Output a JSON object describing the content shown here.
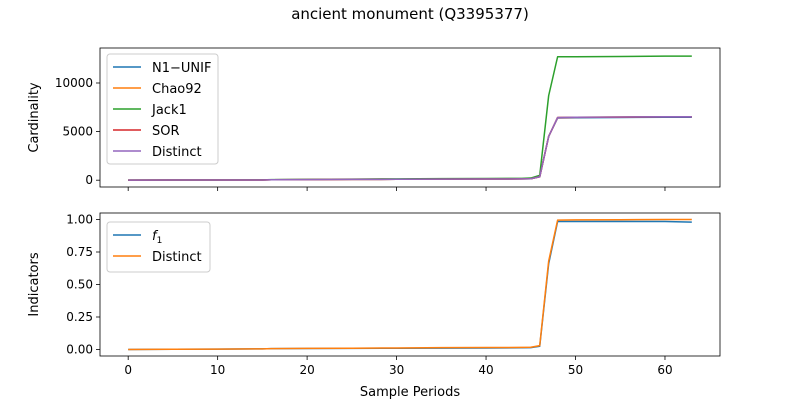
{
  "figure_title": "ancient monument (Q3395377)",
  "colors": {
    "blue": "#1f77b4",
    "orange": "#ff7f0e",
    "green": "#2ca02c",
    "red": "#d62728",
    "purple": "#9467bd"
  },
  "chart_data": [
    {
      "type": "line",
      "title": "",
      "xlabel": "",
      "ylabel": "Cardinality",
      "xlim": [
        -3.15,
        66.15
      ],
      "ylim": [
        -700,
        13600
      ],
      "xticks": [
        0,
        10,
        20,
        30,
        40,
        50,
        60
      ],
      "xtick_labels": [
        "",
        "",
        "",
        "",
        "",
        "",
        ""
      ],
      "yticks": [
        0,
        5000,
        10000
      ],
      "ytick_labels": [
        "0",
        "5000",
        "10000"
      ],
      "grid": false,
      "legend_position": "upper-left",
      "x": [
        0,
        5,
        10,
        15,
        16,
        20,
        25,
        30,
        35,
        40,
        44,
        45,
        46,
        47,
        48,
        50,
        55,
        60,
        63
      ],
      "series": [
        {
          "name": "N1−UNIF",
          "color": "#1f77b4",
          "values": [
            10,
            15,
            20,
            25,
            50,
            60,
            80,
            95,
            110,
            120,
            130,
            150,
            350,
            4500,
            6400,
            6420,
            6450,
            6480,
            6480
          ]
        },
        {
          "name": "Chao92",
          "color": "#ff7f0e",
          "values": [
            10,
            15,
            20,
            25,
            50,
            60,
            80,
            95,
            110,
            120,
            130,
            150,
            350,
            4500,
            6450,
            6470,
            6500,
            6530,
            6530
          ]
        },
        {
          "name": "Jack1",
          "color": "#2ca02c",
          "values": [
            10,
            20,
            25,
            30,
            60,
            80,
            110,
            140,
            160,
            180,
            190,
            220,
            500,
            8700,
            12700,
            12700,
            12730,
            12760,
            12760
          ]
        },
        {
          "name": "SOR",
          "color": "#d62728",
          "values": [
            10,
            15,
            20,
            25,
            50,
            60,
            80,
            95,
            110,
            120,
            130,
            150,
            350,
            4500,
            6440,
            6460,
            6490,
            6520,
            6520
          ]
        },
        {
          "name": "Distinct",
          "color": "#9467bd",
          "values": [
            10,
            15,
            20,
            25,
            50,
            60,
            80,
            95,
            110,
            120,
            130,
            150,
            350,
            4500,
            6450,
            6470,
            6500,
            6530,
            6530
          ]
        }
      ]
    },
    {
      "type": "line",
      "title": "",
      "xlabel": "Sample Periods",
      "ylabel": "Indicators",
      "xlim": [
        -3.15,
        66.15
      ],
      "ylim": [
        -0.05,
        1.05
      ],
      "xticks": [
        0,
        10,
        20,
        30,
        40,
        50,
        60
      ],
      "xtick_labels": [
        "0",
        "10",
        "20",
        "30",
        "40",
        "50",
        "60"
      ],
      "yticks": [
        0.0,
        0.25,
        0.5,
        0.75,
        1.0
      ],
      "ytick_labels": [
        "0.00",
        "0.25",
        "0.50",
        "0.75",
        "1.00"
      ],
      "grid": false,
      "legend_position": "upper-left",
      "x": [
        0,
        5,
        10,
        15,
        16,
        20,
        25,
        30,
        35,
        40,
        44,
        45,
        46,
        47,
        48,
        50,
        55,
        60,
        63
      ],
      "series": [
        {
          "name": "f1",
          "name_main": "f",
          "name_sub": "1",
          "color": "#1f77b4",
          "values": [
            0.0,
            0.002,
            0.003,
            0.005,
            0.007,
            0.008,
            0.009,
            0.01,
            0.011,
            0.012,
            0.013,
            0.014,
            0.025,
            0.66,
            0.985,
            0.985,
            0.985,
            0.985,
            0.98
          ]
        },
        {
          "name": "Distinct",
          "color": "#ff7f0e",
          "values": [
            0.0,
            0.002,
            0.003,
            0.005,
            0.007,
            0.009,
            0.01,
            0.012,
            0.014,
            0.015,
            0.016,
            0.017,
            0.03,
            0.68,
            0.995,
            0.997,
            0.998,
            1.0,
            1.0
          ]
        }
      ]
    }
  ]
}
